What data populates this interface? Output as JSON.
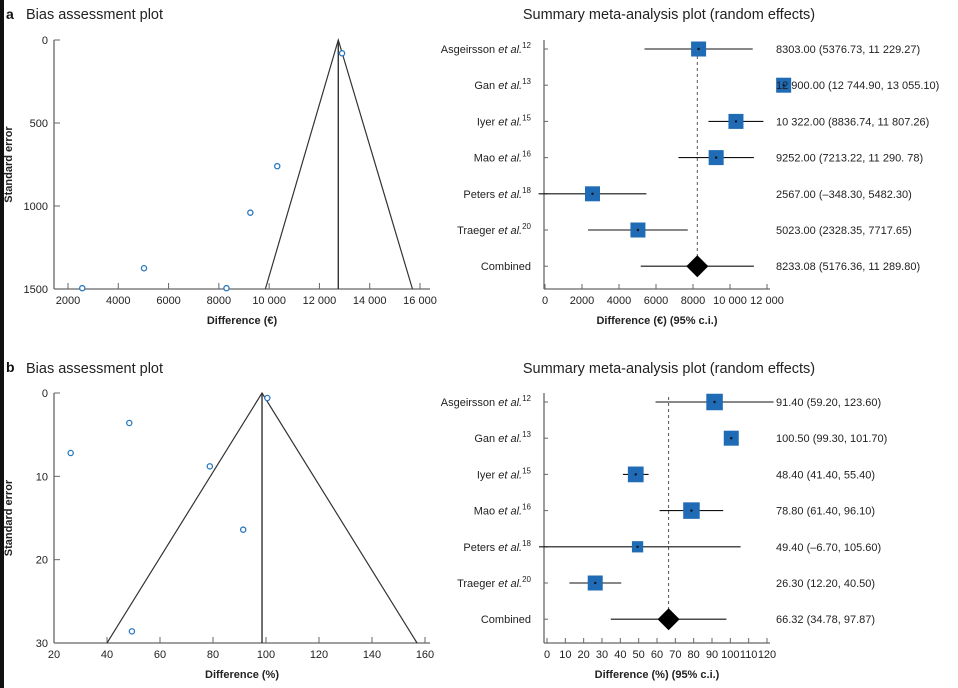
{
  "chart_data": [
    {
      "panel": "a",
      "type": "scatter",
      "title": "Bias assessment plot",
      "xlabel": "Difference (€)",
      "ylabel": "Standard error",
      "xlim": [
        2000,
        16000
      ],
      "ylim": [
        0,
        1500
      ],
      "y_inverted": true,
      "xticks": [
        2000,
        4000,
        6000,
        8000,
        10000,
        12000,
        14000,
        16000
      ],
      "xtick_labels": [
        "2000",
        "4000",
        "6000",
        "8000",
        "10 000",
        "12 000",
        "14 000",
        "16 000"
      ],
      "yticks": [
        0,
        500,
        1000,
        1500
      ],
      "ytick_labels": [
        "0",
        "500",
        "1000",
        "1500"
      ],
      "points": [
        {
          "x": 12900,
          "y": 80
        },
        {
          "x": 10322,
          "y": 760
        },
        {
          "x": 9252,
          "y": 1040
        },
        {
          "x": 5023,
          "y": 1375
        },
        {
          "x": 2567,
          "y": 1495
        },
        {
          "x": 8303,
          "y": 1495
        }
      ],
      "funnel": {
        "apex": 12750,
        "base_left": 9850,
        "base_right": 15700,
        "center": 12750
      },
      "point_color": "#2a78c0"
    },
    {
      "panel": "a",
      "type": "forest",
      "title": "Summary meta-analysis plot (random effects)",
      "xlabel": "Difference (€) (95% c.i.)",
      "xlim": [
        0,
        12000
      ],
      "xticks": [
        0,
        2000,
        4000,
        6000,
        8000,
        10000,
        12000
      ],
      "xtick_labels": [
        "0",
        "2000",
        "4000",
        "6000",
        "8000",
        "10 000",
        "12 000"
      ],
      "studies": [
        {
          "author": "Asgeirsson",
          "etal": "et al.",
          "ref": "12",
          "est": 8303.0,
          "lo": 5376.73,
          "hi": 11229.27,
          "weight": 1,
          "label": "8303.00 (5376.73, 11 229.27)"
        },
        {
          "author": "Gan",
          "etal": "et al.",
          "ref": "13",
          "est": 12900.0,
          "lo": 12744.9,
          "hi": 13055.1,
          "weight": 1,
          "label": "12 900.00 (12 744.90, 13 055.10)"
        },
        {
          "author": "Iyer",
          "etal": "et al.",
          "ref": "15",
          "est": 10322.0,
          "lo": 8836.74,
          "hi": 11807.26,
          "weight": 1,
          "label": "10 322.00 (8836.74, 11 807.26)"
        },
        {
          "author": "Mao",
          "etal": "et al.",
          "ref": "16",
          "est": 9252.0,
          "lo": 7213.22,
          "hi": 11290.78,
          "weight": 1,
          "label": "9252.00 (7213.22, 11 290. 78)"
        },
        {
          "author": "Peters",
          "etal": "et al.",
          "ref": "18",
          "est": 2567.0,
          "lo": -348.3,
          "hi": 5482.3,
          "weight": 1,
          "label": "2567.00 (–348.30, 5482.30)"
        },
        {
          "author": "Traeger",
          "etal": "et al.",
          "ref": "20",
          "est": 5023.0,
          "lo": 2328.35,
          "hi": 7717.65,
          "weight": 1,
          "label": "5023.00 (2328.35, 7717.65)"
        }
      ],
      "combined": {
        "label_name": "Combined",
        "est": 8233.08,
        "lo": 5176.36,
        "hi": 11289.8,
        "label": "8233.08 (5176.36, 11 289.80)"
      },
      "box_color": "#1f6bb5"
    },
    {
      "panel": "b",
      "type": "scatter",
      "title": "Bias assessment plot",
      "xlabel": "Difference (%)",
      "ylabel": "Standard error",
      "xlim": [
        20,
        160
      ],
      "ylim": [
        0,
        30
      ],
      "y_inverted": true,
      "xticks": [
        20,
        40,
        60,
        80,
        100,
        120,
        140,
        160
      ],
      "xtick_labels": [
        "20",
        "40",
        "60",
        "80",
        "100",
        "120",
        "140",
        "160"
      ],
      "yticks": [
        0,
        10,
        20,
        30
      ],
      "ytick_labels": [
        "0",
        "10",
        "20",
        "30"
      ],
      "points": [
        {
          "x": 100.5,
          "y": 0.6
        },
        {
          "x": 48.4,
          "y": 3.6
        },
        {
          "x": 26.3,
          "y": 7.2
        },
        {
          "x": 78.8,
          "y": 8.8
        },
        {
          "x": 91.4,
          "y": 16.4
        },
        {
          "x": 49.4,
          "y": 28.6
        }
      ],
      "funnel": {
        "apex": 98.5,
        "base_left": 40,
        "base_right": 157,
        "center": 98.5
      },
      "point_color": "#2a78c0"
    },
    {
      "panel": "b",
      "type": "forest",
      "title": "Summary meta-analysis plot (random effects)",
      "xlabel": "Difference (%) (95% c.i.)",
      "xlim": [
        0,
        120
      ],
      "xticks": [
        0,
        10,
        20,
        30,
        40,
        50,
        60,
        70,
        80,
        90,
        100,
        110,
        120
      ],
      "xtick_labels": [
        "0",
        "10",
        "20",
        "30",
        "40",
        "50",
        "60",
        "70",
        "80",
        "90",
        "100",
        "110",
        "120"
      ],
      "studies": [
        {
          "author": "Asgeirsson",
          "etal": "et al.",
          "ref": "12",
          "est": 91.4,
          "lo": 59.2,
          "hi": 123.6,
          "weight": 1.1,
          "label": "91.40 (59.20, 123.60)"
        },
        {
          "author": "Gan",
          "etal": "et al.",
          "ref": "13",
          "est": 100.5,
          "lo": 99.3,
          "hi": 101.7,
          "weight": 1,
          "label": "100.50 (99.30, 101.70)"
        },
        {
          "author": "Iyer",
          "etal": "et al.",
          "ref": "15",
          "est": 48.4,
          "lo": 41.4,
          "hi": 55.4,
          "weight": 1.05,
          "label": "48.40 (41.40, 55.40)"
        },
        {
          "author": "Mao",
          "etal": "et al.",
          "ref": "16",
          "est": 78.8,
          "lo": 61.4,
          "hi": 96.1,
          "weight": 1.1,
          "label": "78.80 (61.40, 96.10)"
        },
        {
          "author": "Peters",
          "etal": "et al.",
          "ref": "18",
          "est": 49.4,
          "lo": -6.7,
          "hi": 105.6,
          "weight": 0.75,
          "label": "49.40 (–6.70, 105.60)"
        },
        {
          "author": "Traeger",
          "etal": "et al.",
          "ref": "20",
          "est": 26.3,
          "lo": 12.2,
          "hi": 40.5,
          "weight": 1.0,
          "label": "26.30 (12.20, 40.50)"
        }
      ],
      "combined": {
        "label_name": "Combined",
        "est": 66.32,
        "lo": 34.78,
        "hi": 97.87,
        "label": "66.32 (34.78, 97.87)"
      },
      "box_color": "#1f6bb5"
    }
  ]
}
